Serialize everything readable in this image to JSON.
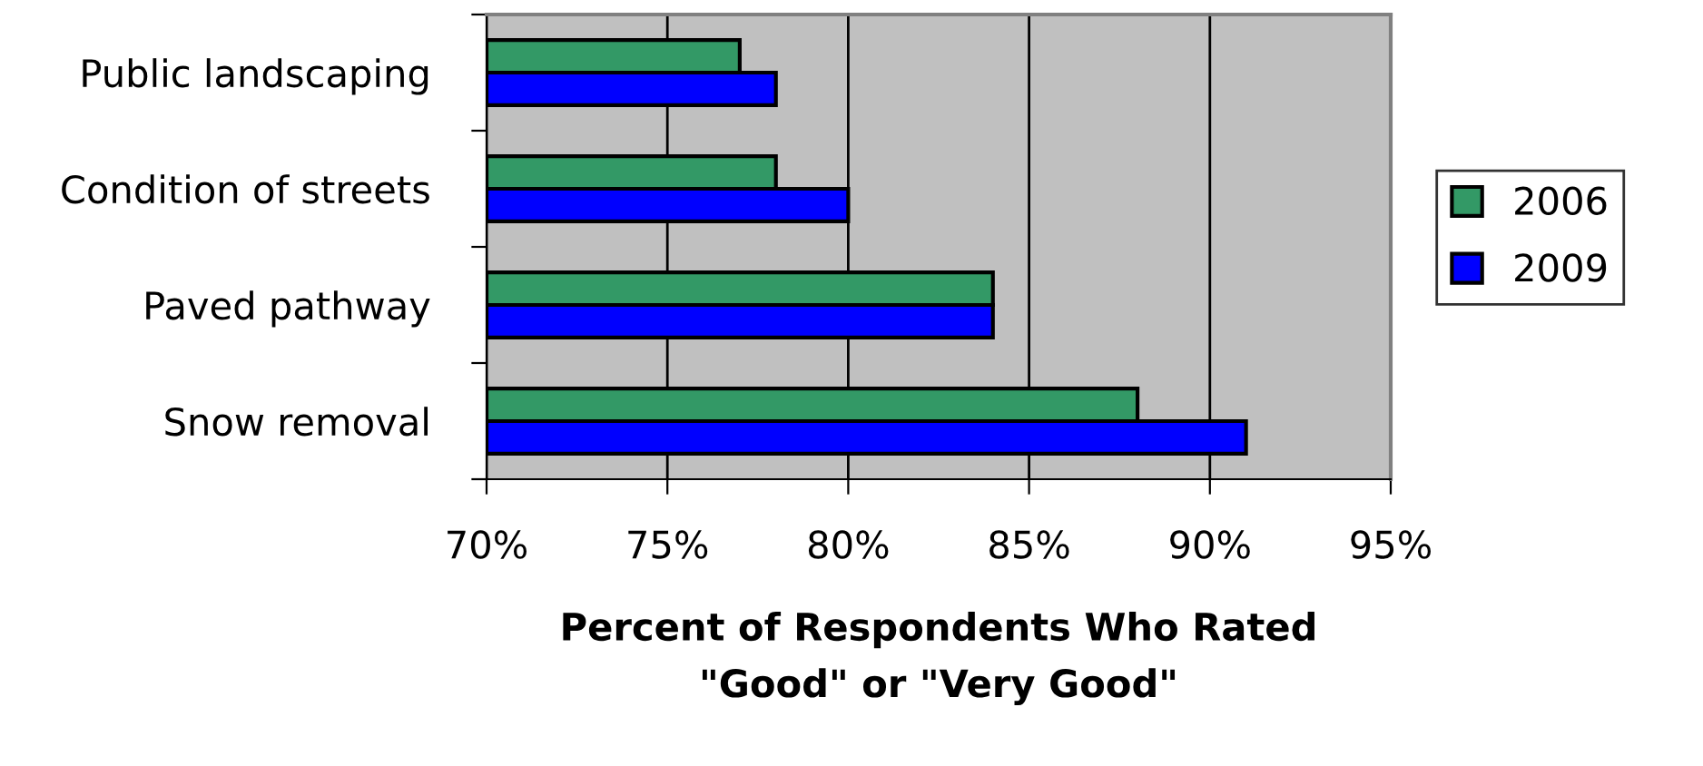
{
  "chart_data": {
    "type": "bar",
    "orientation": "horizontal",
    "xlabel": "Percent of Respondents Who Rated\n\"Good\" or \"Very Good\"",
    "categories": [
      "Public landscaping",
      "Condition of streets",
      "Paved pathway",
      "Snow removal"
    ],
    "series": [
      {
        "name": "2006",
        "color": "#339966",
        "values": [
          77,
          78,
          84,
          88
        ]
      },
      {
        "name": "2009",
        "color": "#0000ff",
        "values": [
          78,
          80,
          84,
          91
        ]
      }
    ],
    "xlim": [
      70,
      95
    ],
    "xticks": [
      {
        "value": 70,
        "label": "70%"
      },
      {
        "value": 75,
        "label": "75%"
      },
      {
        "value": 80,
        "label": "80%"
      },
      {
        "value": 85,
        "label": "85%"
      },
      {
        "value": 90,
        "label": "90%"
      },
      {
        "value": 95,
        "label": "95%"
      }
    ],
    "grid": "x",
    "legend": "right"
  }
}
